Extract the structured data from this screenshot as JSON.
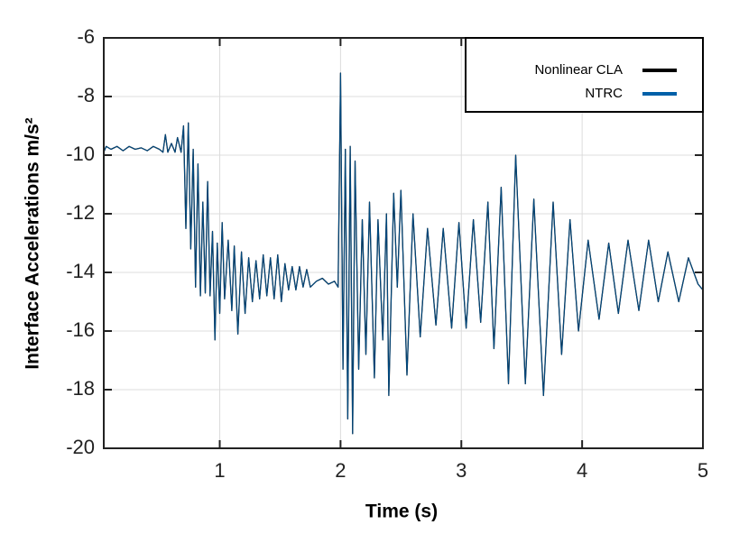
{
  "chart_data": {
    "type": "line",
    "x_label": "Time (s)",
    "y_label": "Interface Accelerations m/s²",
    "x": [
      0.04,
      0.06,
      0.1,
      0.15,
      0.2,
      0.25,
      0.3,
      0.35,
      0.4,
      0.45,
      0.5,
      0.53,
      0.55,
      0.57,
      0.6,
      0.63,
      0.65,
      0.68,
      0.7,
      0.72,
      0.74,
      0.76,
      0.78,
      0.8,
      0.82,
      0.84,
      0.86,
      0.88,
      0.9,
      0.92,
      0.94,
      0.96,
      0.98,
      1.0,
      1.02,
      1.04,
      1.07,
      1.1,
      1.12,
      1.15,
      1.18,
      1.21,
      1.24,
      1.27,
      1.3,
      1.33,
      1.36,
      1.39,
      1.42,
      1.45,
      1.48,
      1.51,
      1.54,
      1.57,
      1.6,
      1.63,
      1.66,
      1.69,
      1.72,
      1.75,
      1.8,
      1.85,
      1.9,
      1.95,
      1.98,
      2.0,
      2.02,
      2.04,
      2.06,
      2.08,
      2.1,
      2.12,
      2.15,
      2.18,
      2.21,
      2.24,
      2.28,
      2.31,
      2.35,
      2.38,
      2.4,
      2.44,
      2.47,
      2.5,
      2.55,
      2.6,
      2.66,
      2.72,
      2.79,
      2.85,
      2.92,
      2.98,
      3.04,
      3.1,
      3.16,
      3.22,
      3.27,
      3.33,
      3.39,
      3.45,
      3.53,
      3.6,
      3.68,
      3.76,
      3.83,
      3.9,
      3.97,
      4.05,
      4.14,
      4.22,
      4.3,
      4.38,
      4.47,
      4.55,
      4.63,
      4.71,
      4.8,
      4.88,
      4.96,
      5.0
    ],
    "series": [
      {
        "name": "Nonlinear CLA",
        "color": "#000000",
        "values": [
          -9.9,
          -9.7,
          -9.8,
          -9.7,
          -9.85,
          -9.7,
          -9.8,
          -9.75,
          -9.85,
          -9.7,
          -9.8,
          -9.9,
          -9.3,
          -9.9,
          -9.6,
          -9.9,
          -9.4,
          -9.9,
          -9.0,
          -12.5,
          -8.9,
          -13.2,
          -9.8,
          -14.5,
          -10.3,
          -14.8,
          -11.6,
          -14.7,
          -10.9,
          -14.8,
          -12.6,
          -16.3,
          -13.0,
          -15.4,
          -12.3,
          -14.9,
          -12.9,
          -15.3,
          -13.1,
          -16.1,
          -13.3,
          -15.4,
          -13.5,
          -15.0,
          -13.6,
          -14.9,
          -13.4,
          -14.8,
          -13.5,
          -14.9,
          -13.4,
          -15.0,
          -13.7,
          -14.6,
          -13.8,
          -14.6,
          -13.8,
          -14.5,
          -13.9,
          -14.5,
          -14.3,
          -14.2,
          -14.4,
          -14.3,
          -14.5,
          -7.2,
          -17.3,
          -9.8,
          -19.0,
          -9.7,
          -19.5,
          -10.2,
          -17.3,
          -12.2,
          -16.8,
          -11.6,
          -17.6,
          -12.2,
          -16.3,
          -12.0,
          -18.2,
          -11.3,
          -14.5,
          -11.2,
          -17.5,
          -12.0,
          -16.2,
          -12.5,
          -15.8,
          -12.5,
          -15.9,
          -12.3,
          -15.9,
          -12.2,
          -15.7,
          -11.6,
          -16.6,
          -11.1,
          -17.8,
          -10.0,
          -17.8,
          -11.5,
          -18.2,
          -11.6,
          -16.8,
          -12.2,
          -16.0,
          -12.9,
          -15.6,
          -13.0,
          -15.4,
          -12.9,
          -15.3,
          -12.9,
          -15.0,
          -13.3,
          -15.0,
          -13.5,
          -14.4,
          -14.6
        ]
      },
      {
        "name": "NTRC",
        "color": "#0060a8",
        "values": [
          -9.9,
          -9.7,
          -9.8,
          -9.7,
          -9.85,
          -9.7,
          -9.8,
          -9.75,
          -9.85,
          -9.7,
          -9.8,
          -9.9,
          -9.3,
          -9.9,
          -9.6,
          -9.9,
          -9.4,
          -9.9,
          -9.0,
          -12.5,
          -8.9,
          -13.2,
          -9.8,
          -14.5,
          -10.3,
          -14.8,
          -11.6,
          -14.7,
          -10.9,
          -14.8,
          -12.6,
          -16.3,
          -13.0,
          -15.4,
          -12.3,
          -14.9,
          -12.9,
          -15.3,
          -13.1,
          -16.1,
          -13.3,
          -15.4,
          -13.5,
          -15.0,
          -13.6,
          -14.9,
          -13.4,
          -14.8,
          -13.5,
          -14.9,
          -13.4,
          -15.0,
          -13.7,
          -14.6,
          -13.8,
          -14.6,
          -13.8,
          -14.5,
          -13.9,
          -14.5,
          -14.3,
          -14.2,
          -14.4,
          -14.3,
          -14.5,
          -7.2,
          -17.3,
          -9.8,
          -19.0,
          -9.7,
          -19.5,
          -10.2,
          -17.3,
          -12.2,
          -16.8,
          -11.6,
          -17.6,
          -12.2,
          -16.3,
          -12.0,
          -18.2,
          -11.3,
          -14.5,
          -11.2,
          -17.5,
          -12.0,
          -16.2,
          -12.5,
          -15.8,
          -12.5,
          -15.9,
          -12.3,
          -15.9,
          -12.2,
          -15.7,
          -11.6,
          -16.6,
          -11.1,
          -17.8,
          -10.0,
          -17.8,
          -11.5,
          -18.2,
          -11.6,
          -16.8,
          -12.2,
          -16.0,
          -12.9,
          -15.6,
          -13.0,
          -15.4,
          -12.9,
          -15.3,
          -12.9,
          -15.0,
          -13.3,
          -15.0,
          -13.5,
          -14.4,
          -14.6
        ]
      }
    ],
    "xlim": [
      0.04,
      5
    ],
    "xticks": [
      1,
      2,
      3,
      4,
      5
    ],
    "ylim": [
      -20,
      -6
    ],
    "yticks": [
      -20,
      -18,
      -16,
      -14,
      -12,
      -10,
      -8,
      -6
    ],
    "grid": true,
    "legend": "upper right"
  }
}
